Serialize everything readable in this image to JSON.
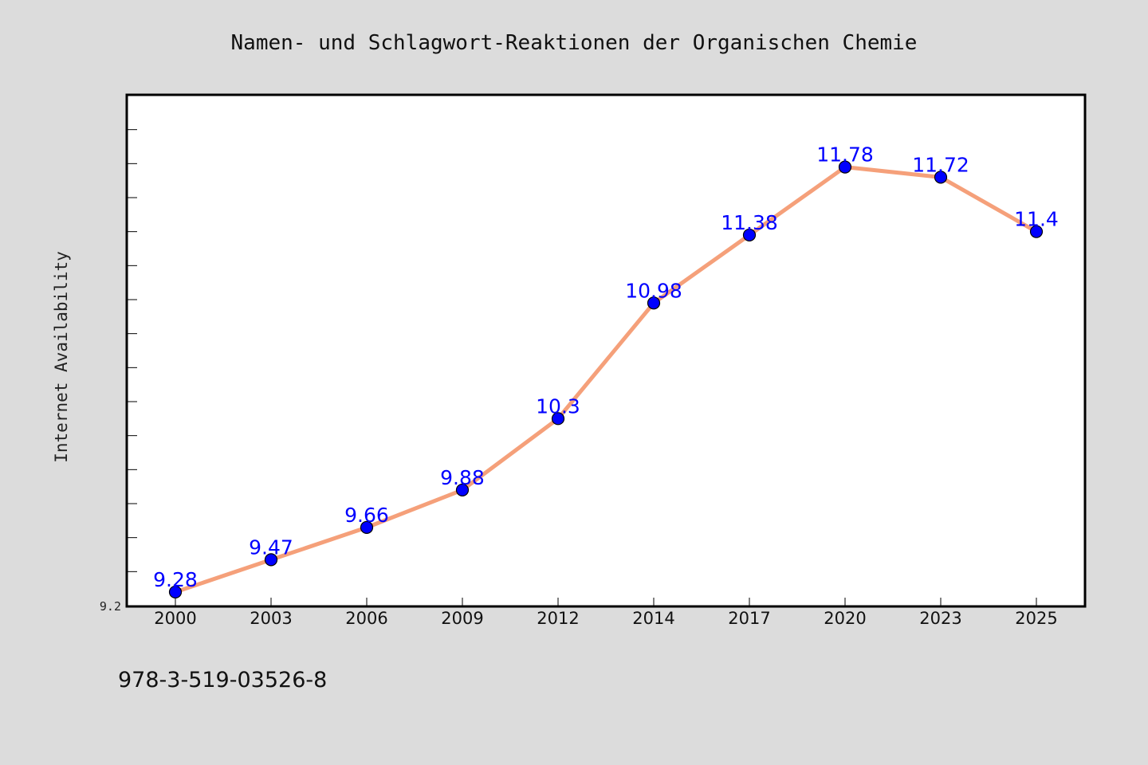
{
  "figure": {
    "background": "#dcdcdc",
    "plot_background": "#ffffff",
    "footer_text": "978-3-519-03526-8"
  },
  "chart_data": {
    "type": "line",
    "title": "Namen- und Schlagwort-Reaktionen der Organischen Chemie",
    "xlabel": "",
    "ylabel": "Internet Availability",
    "categories": [
      "2000",
      "2003",
      "2006",
      "2009",
      "2012",
      "2014",
      "2017",
      "2020",
      "2023",
      "2025"
    ],
    "series": [
      {
        "values": [
          9.28,
          9.47,
          9.66,
          9.88,
          10.3,
          10.98,
          11.38,
          11.78,
          11.72,
          11.4
        ],
        "data_labels": [
          "9.28",
          "9.47",
          "9.66",
          "9.88",
          "10.3",
          "10.98",
          "11.38",
          "11.78",
          "11.72",
          "11.4"
        ],
        "line_color": "#f5a07a",
        "marker_color": "#0000ff"
      }
    ],
    "ylim": [
      9.2,
      12.2
    ],
    "y_tick_labels": [
      "9.2"
    ],
    "y_minor_tick_step": 0.2,
    "grid": false,
    "legend": "none"
  }
}
